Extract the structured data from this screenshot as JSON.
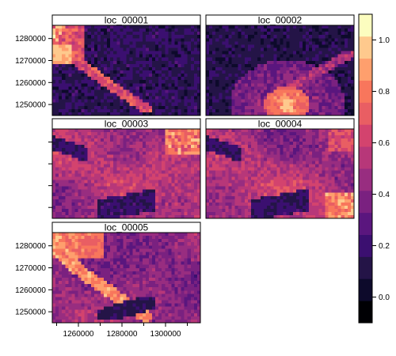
{
  "chart_data": {
    "type": "heatmap",
    "panels": [
      {
        "title": "loc_00001",
        "pattern": "river_bright_low_background"
      },
      {
        "title": "loc_00002",
        "pattern": "urban_cluster_bottom"
      },
      {
        "title": "loc_00003",
        "pattern": "moderate_with_dark_patches"
      },
      {
        "title": "loc_00004",
        "pattern": "moderate_with_dark_patches_bright_corners"
      },
      {
        "title": "loc_00005",
        "pattern": "river_moderate_background"
      }
    ],
    "x_ticks": [
      "1260000",
      "1280000",
      "1300000"
    ],
    "y_ticks": [
      "1250000",
      "1260000",
      "1270000",
      "1280000"
    ],
    "x_range": [
      1248000,
      1316000
    ],
    "y_range": [
      1245000,
      1286000
    ],
    "colorbar": {
      "ticks": [
        "0.0",
        "0.2",
        "0.4",
        "0.6",
        "0.8",
        "1.0"
      ],
      "tick_values": [
        0.0,
        0.2,
        0.4,
        0.6,
        0.8,
        1.0
      ],
      "range": [
        -0.1,
        1.1
      ],
      "bins": 14
    },
    "palette": [
      "#000004",
      "#0d0a2b",
      "#241447",
      "#3b0f70",
      "#5a167e",
      "#7a2180",
      "#982d80",
      "#b73779",
      "#d3436e",
      "#e95e63",
      "#f8765c",
      "#fe9f6d",
      "#fec98d",
      "#fcfdbf"
    ],
    "frame_color": "#000000"
  }
}
